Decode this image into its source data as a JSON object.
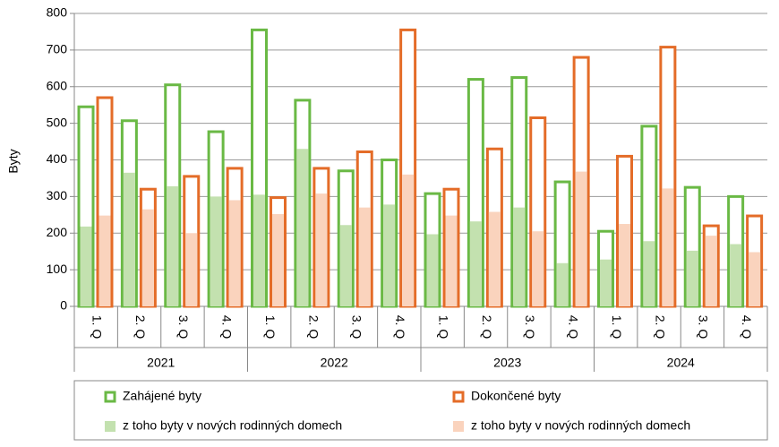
{
  "chart_data": {
    "type": "bar",
    "y_label": "Byty",
    "categories": [
      "1. Q",
      "2. Q",
      "3. Q",
      "4. Q",
      "1. Q",
      "2. Q",
      "3. Q",
      "4. Q",
      "1. Q",
      "2. Q",
      "3. Q",
      "4. Q",
      "1. Q",
      "2. Q",
      "3. Q",
      "4. Q"
    ],
    "groups": [
      "2021",
      "2022",
      "2023",
      "2024"
    ],
    "ylim": [
      0,
      800
    ],
    "yticks": [
      0,
      100,
      200,
      300,
      400,
      500,
      600,
      700,
      800
    ],
    "series": [
      {
        "name": "Zahájené byty",
        "color": "#6ab945",
        "style": "outline",
        "slot": 0,
        "values": [
          545,
          507,
          605,
          477,
          755,
          563,
          370,
          400,
          308,
          620,
          625,
          340,
          205,
          492,
          325,
          300
        ]
      },
      {
        "name": "Dokončené byty",
        "color": "#e46c28",
        "style": "outline",
        "slot": 1,
        "values": [
          570,
          320,
          355,
          377,
          297,
          377,
          422,
          755,
          320,
          430,
          515,
          680,
          410,
          708,
          220,
          247
        ]
      },
      {
        "name": "z toho byty v nových rodinných domech",
        "color": "#c3e1af",
        "style": "fill",
        "slot": 0,
        "values": [
          218,
          365,
          328,
          300,
          305,
          430,
          222,
          278,
          197,
          232,
          270,
          118,
          128,
          178,
          152,
          170
        ]
      },
      {
        "name": "z toho byty v nových rodinných domech",
        "color": "#fad3bd",
        "style": "fill",
        "slot": 1,
        "values": [
          248,
          265,
          200,
          290,
          252,
          308,
          270,
          360,
          248,
          258,
          205,
          368,
          225,
          322,
          193,
          148
        ]
      }
    ]
  }
}
